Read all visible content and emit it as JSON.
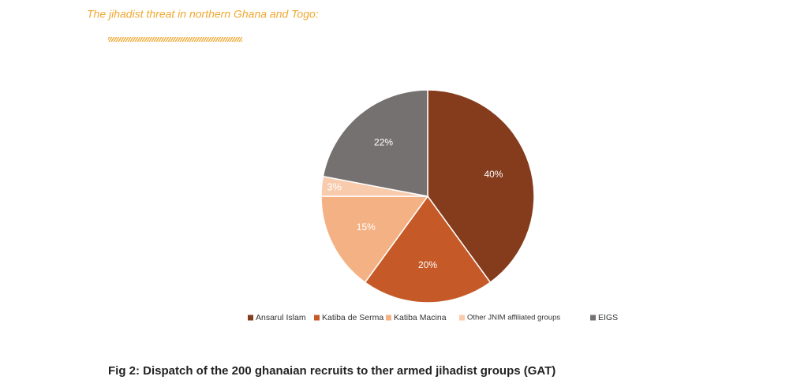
{
  "header": "The jihadist threat in northern Ghana and Togo:",
  "chart_data": {
    "type": "pie",
    "categories": [
      "Ansarul Islam",
      "Katiba de Serma",
      "Katiba Macina",
      "Other JNIM affiliated groups",
      "EIGS"
    ],
    "values": [
      40,
      20,
      15,
      3,
      22
    ],
    "value_labels": [
      "40%",
      "20%",
      "15%",
      "3%",
      "22%"
    ],
    "colors": [
      "#843c1c",
      "#c55a28",
      "#f4b183",
      "#f8cbad",
      "#767171"
    ],
    "legend": "bottom"
  },
  "caption": "Fig 2: Dispatch of the 200 ghanaian recruits to ther armed jihadist groups (GAT)"
}
